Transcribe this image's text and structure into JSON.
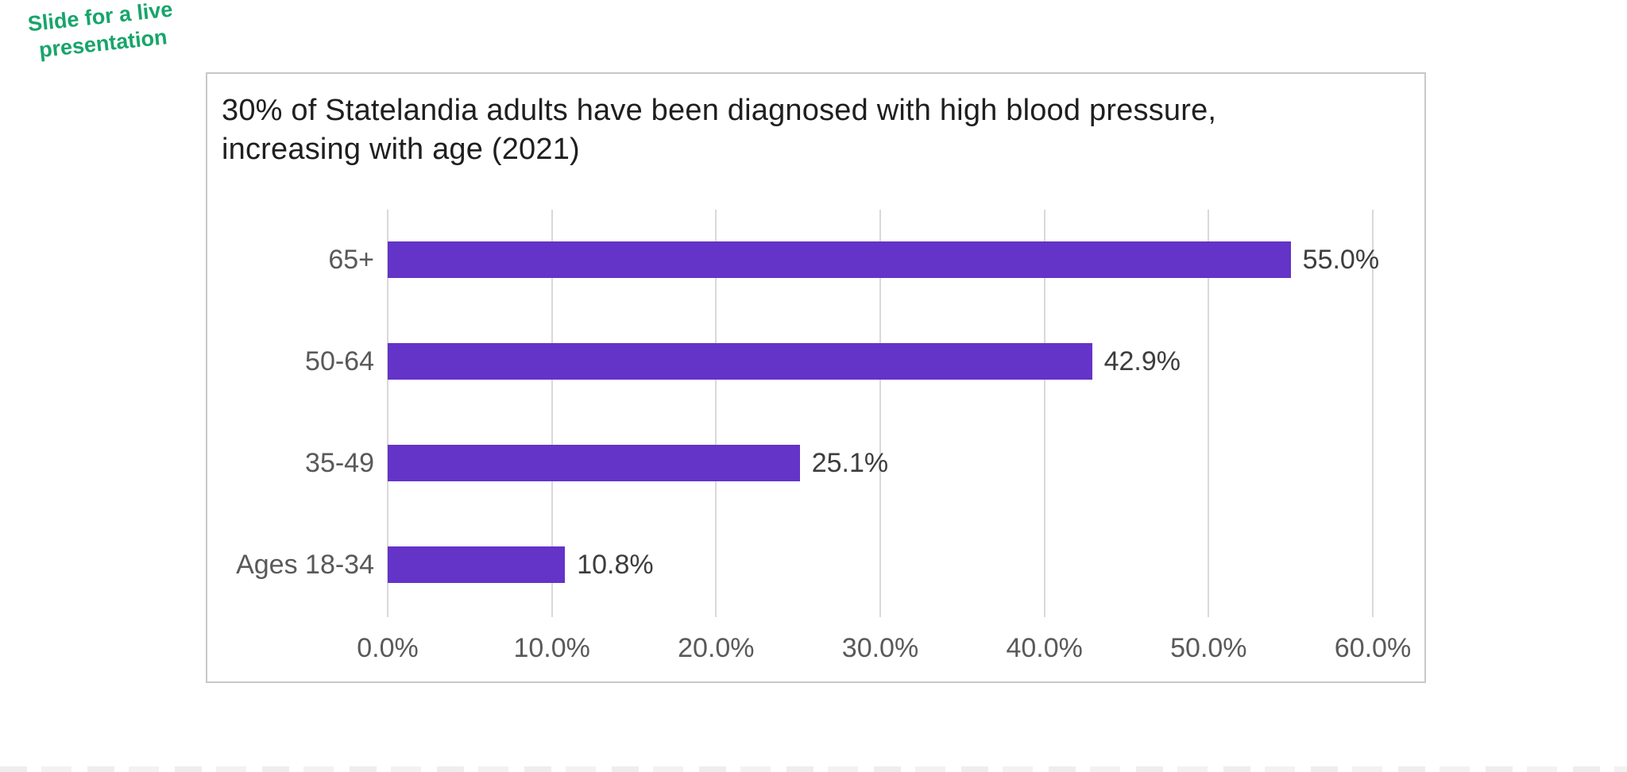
{
  "annotation": {
    "line1": "Slide for a live",
    "line2": "presentation",
    "color": "#17a56b"
  },
  "chart": {
    "title_line1": "30% of Statelandia adults have been diagnosed with high blood pressure,",
    "title_line2": "increasing with age (2021)"
  },
  "chart_data": {
    "type": "bar",
    "orientation": "horizontal",
    "title": "30% of Statelandia adults have been diagnosed with high blood pressure, increasing with age (2021)",
    "categories": [
      "65+",
      "50-64",
      "35-49",
      "Ages 18-34"
    ],
    "values": [
      55.0,
      42.9,
      25.1,
      10.8
    ],
    "value_labels": [
      "55.0%",
      "42.9%",
      "25.1%",
      "10.8%"
    ],
    "x_ticks": [
      "0.0%",
      "10.0%",
      "20.0%",
      "30.0%",
      "40.0%",
      "50.0%",
      "60.0%"
    ],
    "xlim": [
      0,
      60
    ],
    "grid": "vertical-gridlines",
    "legend": "none",
    "bar_color": "#6433c8",
    "xlabel": "",
    "ylabel": ""
  }
}
